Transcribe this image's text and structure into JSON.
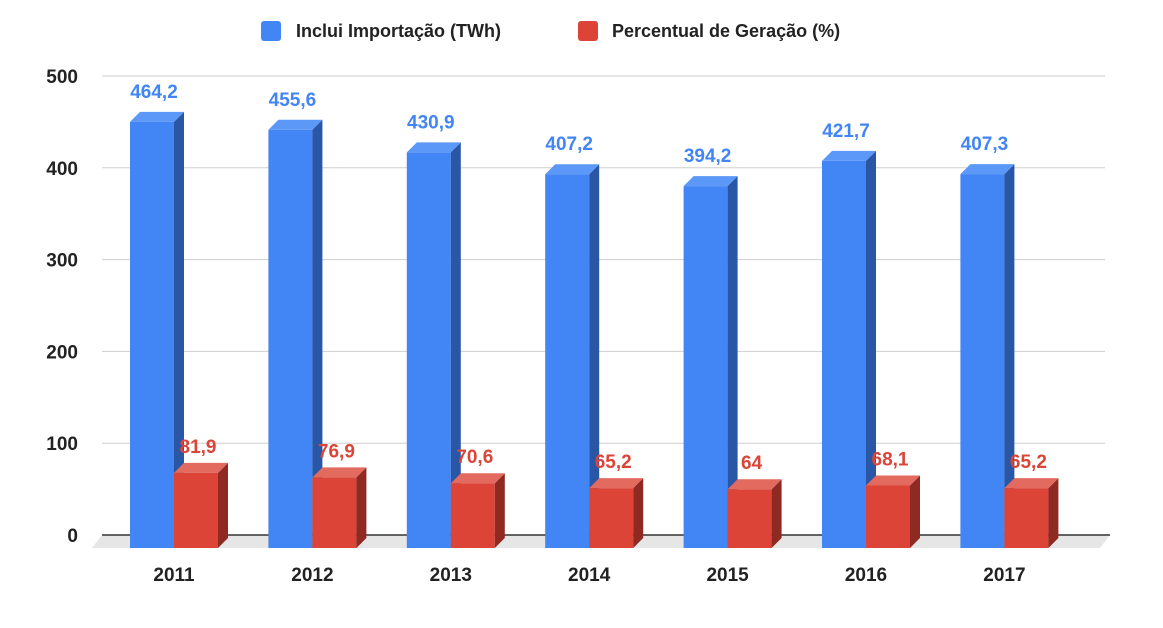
{
  "chart_data": {
    "type": "bar",
    "categories": [
      "2011",
      "2012",
      "2013",
      "2014",
      "2015",
      "2016",
      "2017"
    ],
    "series": [
      {
        "name": "Inclui Importação (TWh)",
        "values": [
          464.2,
          455.6,
          430.9,
          407.2,
          394.2,
          421.7,
          407.3
        ],
        "labels": [
          "464,2",
          "455,6",
          "430,9",
          "407,2",
          "394,2",
          "421,7",
          "407,3"
        ],
        "color": "#4285f4",
        "side_color": "#2a56a6",
        "top_color": "#5b98f7"
      },
      {
        "name": "Percentual de Geração (%)",
        "values": [
          81.9,
          76.9,
          70.6,
          65.2,
          64,
          68.1,
          65.2
        ],
        "labels": [
          "81,9",
          "76,9",
          "70,6",
          "65,2",
          "64",
          "68,1",
          "65,2"
        ],
        "color": "#db4437",
        "side_color": "#8f2a22",
        "top_color": "#e26a5f"
      }
    ],
    "y_ticks": [
      "0",
      "100",
      "200",
      "300",
      "400",
      "500"
    ],
    "ylim": [
      0,
      500
    ],
    "grid": true,
    "legend_position": "top-center",
    "three_d": true
  }
}
